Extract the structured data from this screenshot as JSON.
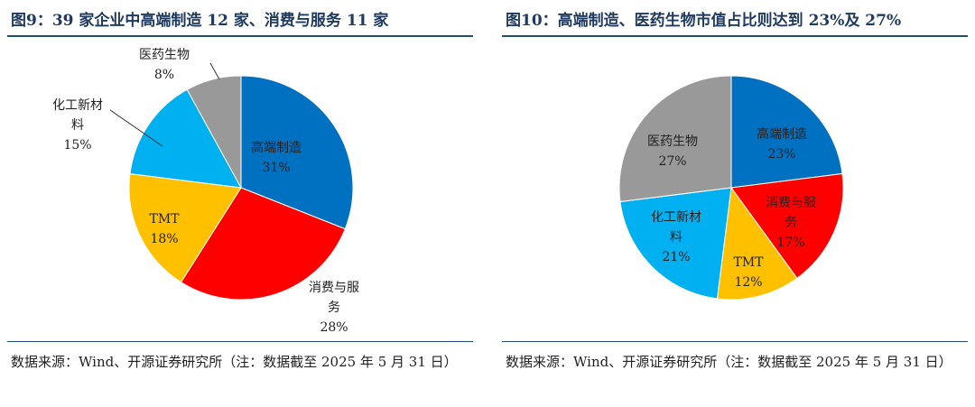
{
  "charts": [
    {
      "title": "图9：39 家企业中高端制造 12 家、消费与服务 11 家",
      "source": "数据来源：Wind、开源证券研究所（注：数据截至 2025 年 5 月 31 日）"
    },
    {
      "title": "图10：高端制造、医药生物市值占比则达到 23%及 27%",
      "source": "数据来源：Wind、开源证券研究所（注：数据截至 2025 年 5 月 31 日）"
    }
  ],
  "chart_data": [
    {
      "type": "pie",
      "title": "图9：39 家企业中高端制造 12 家、消费与服务 11 家",
      "start_angle": "12 o'clock, clockwise",
      "slices": [
        {
          "label": "高端制造",
          "value": 31,
          "value_label": "31%",
          "color": "#0070c0"
        },
        {
          "label": "消费与服务",
          "value": 28,
          "value_label": "28%",
          "color": "#ff0000"
        },
        {
          "label": "TMT",
          "value": 18,
          "value_label": "18%",
          "color": "#ffc000"
        },
        {
          "label": "化工新材料",
          "value": 15,
          "value_label": "15%",
          "color": "#00b0f0"
        },
        {
          "label": "医药生物",
          "value": 8,
          "value_label": "8%",
          "color": "#999999"
        }
      ]
    },
    {
      "type": "pie",
      "title": "图10：高端制造、医药生物市值占比则达到 23%及 27%",
      "start_angle": "12 o'clock, clockwise",
      "slices": [
        {
          "label": "高端制造",
          "value": 23,
          "value_label": "23%",
          "color": "#0070c0"
        },
        {
          "label": "消费与服务",
          "value": 17,
          "value_label": "17%",
          "color": "#ff0000"
        },
        {
          "label": "TMT",
          "value": 12,
          "value_label": "12%",
          "color": "#ffc000"
        },
        {
          "label": "化工新材料",
          "value": 21,
          "value_label": "21%",
          "color": "#00b0f0"
        },
        {
          "label": "医药生物",
          "value": 27,
          "value_label": "27%",
          "color": "#999999"
        }
      ]
    }
  ]
}
